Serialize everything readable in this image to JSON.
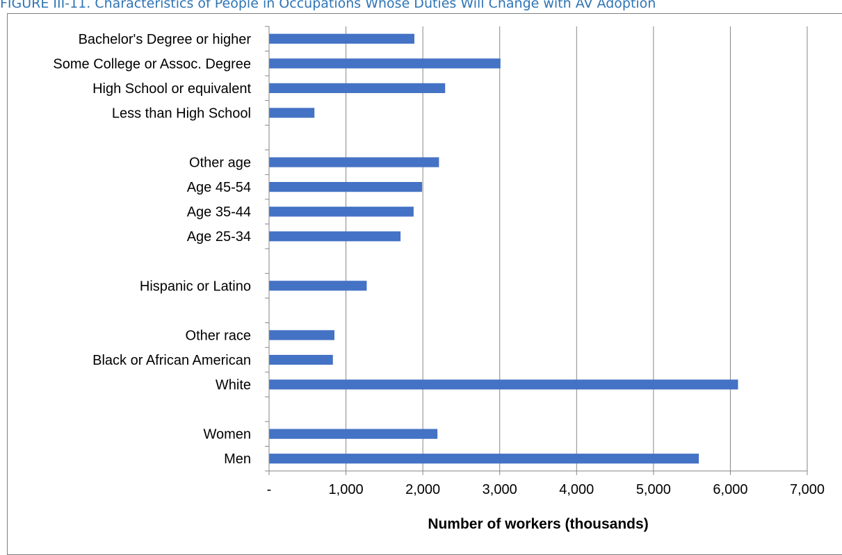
{
  "figure_title": "FIGURE III-11. Characteristics of People in Occupations Whose Duties Will Change with AV Adoption",
  "colors": {
    "bar": "#4472c4",
    "grid": "#868686",
    "axis": "#868686",
    "title": "#2e74b5"
  },
  "chart_data": {
    "type": "bar",
    "orientation": "horizontal",
    "title": "",
    "xlabel": "Number of workers (thousands)",
    "ylabel": "",
    "xlim": [
      0,
      7000
    ],
    "xticks": [
      0,
      1000,
      2000,
      3000,
      4000,
      5000,
      6000,
      7000
    ],
    "xtick_labels": [
      "-",
      "1,000",
      "2,000",
      "3,000",
      "4,000",
      "5,000",
      "6,000",
      "7,000"
    ],
    "grid": true,
    "legend": "none",
    "categories": [
      "Bachelor's Degree or higher",
      "Some College or Assoc. Degree",
      "High School or equivalent",
      "Less than High School",
      "",
      "Other age",
      "Age 45-54",
      "Age 35-44",
      "Age 25-34",
      "",
      "Hispanic or Latino",
      "",
      "Other race",
      "Black or African American",
      "White",
      "",
      "Women",
      "Men"
    ],
    "values": [
      1890,
      3010,
      2290,
      590,
      null,
      2210,
      1990,
      1880,
      1710,
      null,
      1270,
      null,
      850,
      830,
      6100,
      null,
      2190,
      5590
    ]
  }
}
